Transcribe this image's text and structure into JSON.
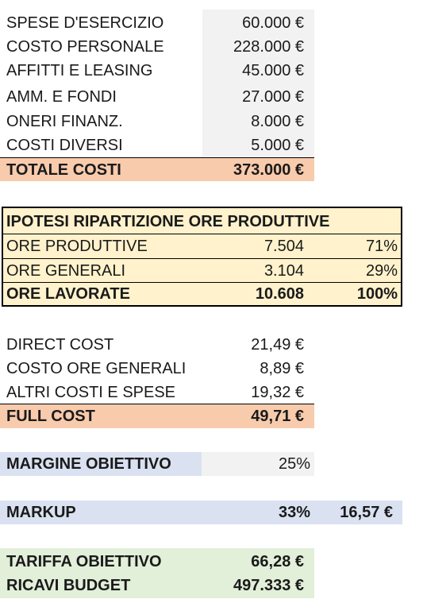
{
  "colors": {
    "value_column_bg": "#f2f2f2",
    "salmon": "#f8cbad",
    "light_yellow": "#fff2cc",
    "light_blue": "#dae1f1",
    "light_green": "#e2efd9"
  },
  "costs": {
    "rows": [
      {
        "label": "SPESE D'ESERCIZIO",
        "value": "60.000 €"
      },
      {
        "label": "COSTO PERSONALE",
        "value": "228.000 €"
      },
      {
        "label": "AFFITTI E LEASING",
        "value": "45.000 €"
      },
      {
        "label": "AMM. E FONDI",
        "value": "27.000 €"
      },
      {
        "label": "ONERI FINANZ.",
        "value": "8.000 €"
      },
      {
        "label": "COSTI DIVERSI",
        "value": "5.000 €"
      }
    ],
    "total": {
      "label": "TOTALE COSTI",
      "value": "373.000 €"
    }
  },
  "hours": {
    "title": "IPOTESI RIPARTIZIONE ORE PRODUTTIVE",
    "rows": [
      {
        "label": "ORE PRODUTTIVE",
        "value": "7.504",
        "pct": "71%"
      },
      {
        "label": "ORE GENERALI",
        "value": "3.104",
        "pct": "29%"
      }
    ],
    "total": {
      "label": "ORE LAVORATE",
      "value": "10.608",
      "pct": "100%"
    }
  },
  "unit_costs": {
    "rows": [
      {
        "label": "DIRECT COST",
        "value": "21,49 €"
      },
      {
        "label": "COSTO ORE GENERALI",
        "value": "8,89 €"
      },
      {
        "label": "ALTRI COSTI E SPESE",
        "value": "19,32 €"
      }
    ],
    "total": {
      "label": "FULL COST",
      "value": "49,71 €"
    }
  },
  "margin": {
    "label": "MARGINE OBIETTIVO",
    "value": "25%"
  },
  "markup": {
    "label": "MARKUP",
    "pct": "33%",
    "value": "16,57 €"
  },
  "target": {
    "tariff": {
      "label": "TARIFFA OBIETTIVO",
      "value": "66,28 €"
    },
    "revenue": {
      "label": "RICAVI BUDGET",
      "value": "497.333 €"
    }
  }
}
